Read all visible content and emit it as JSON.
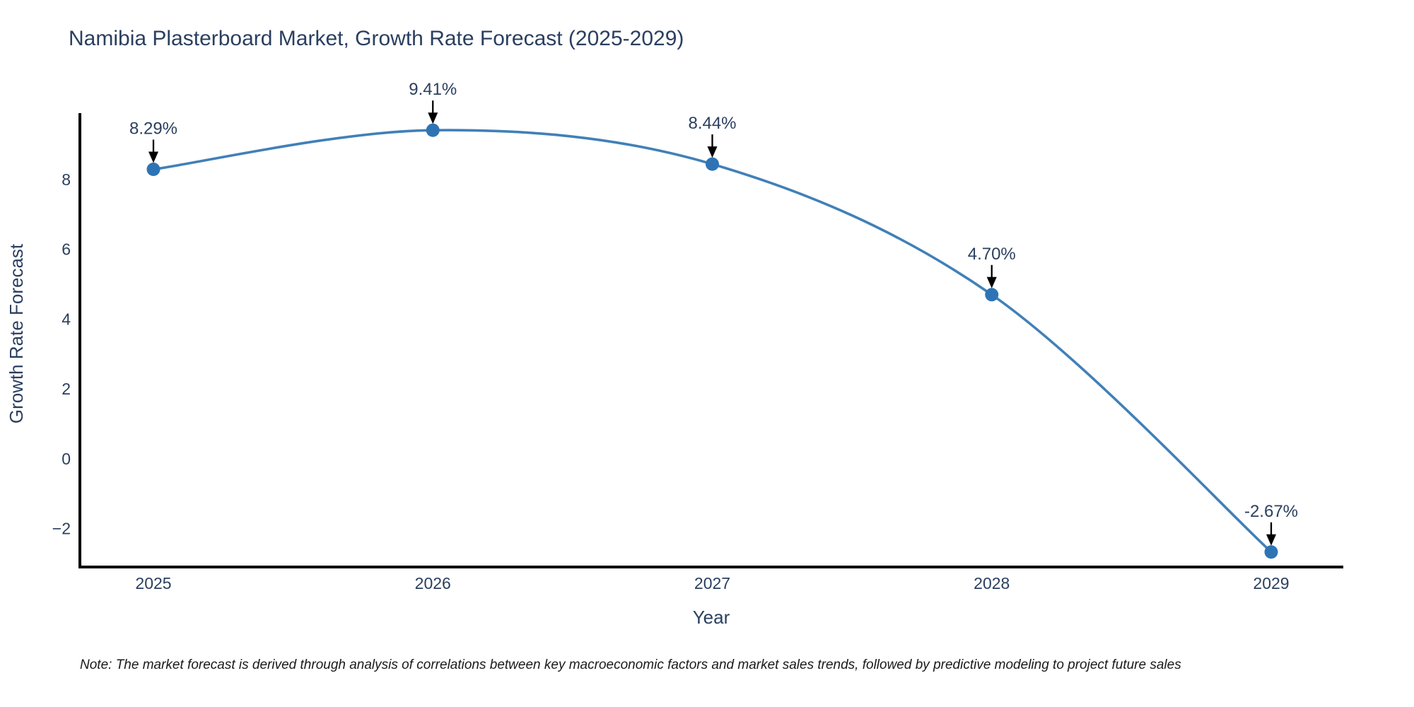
{
  "title": "Namibia Plasterboard Market, Growth Rate Forecast (2025-2029)",
  "note": "Note: The market forecast is derived through analysis of correlations between key macroeconomic factors and market sales trends, followed by predictive modeling to project future sales",
  "chart_data": {
    "type": "line",
    "title": "Namibia Plasterboard Market, Growth Rate Forecast (2025-2029)",
    "xlabel": "Year",
    "ylabel": "Growth Rate Forecast",
    "x": [
      2025,
      2026,
      2027,
      2028,
      2029
    ],
    "values": [
      8.29,
      9.41,
      8.44,
      4.7,
      -2.67
    ],
    "annotations": [
      "8.29%",
      "9.41%",
      "8.44%",
      "4.70%",
      "-2.67%"
    ],
    "x_tick_labels": [
      "2025",
      "2026",
      "2027",
      "2028",
      "2029"
    ],
    "y_ticks": [
      8,
      6,
      4,
      2,
      0,
      -2
    ],
    "y_tick_labels": [
      "8",
      "6",
      "4",
      "2",
      "0",
      "−2"
    ],
    "ylim": [
      -3.1,
      9.9
    ],
    "xlim": [
      2024.74,
      2029.26
    ],
    "grid": false,
    "legend": "none",
    "line_shape": "spline",
    "colors": {
      "line": "#4180b8",
      "marker": "#2e74b5",
      "axis": "#000000",
      "text": "#2a3f5f",
      "arrow": "#000000"
    }
  }
}
